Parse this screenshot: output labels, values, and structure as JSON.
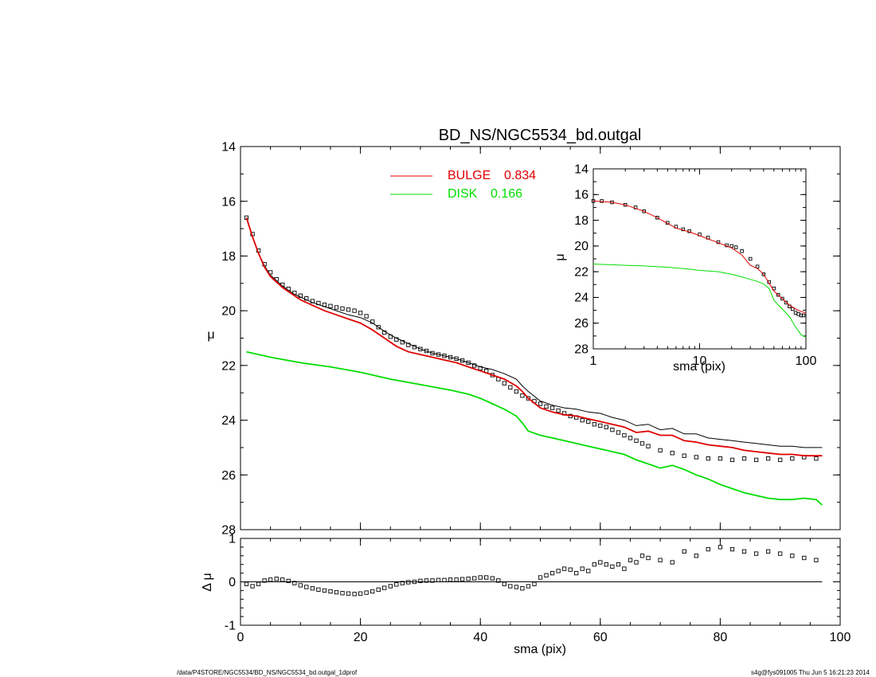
{
  "chart_data": [
    {
      "type": "line",
      "panel": "main",
      "title": "BD_NS/NGC5534_bd.outgal",
      "xlabel": "sma (pix)",
      "ylabel": "μ",
      "xlim": [
        0,
        100
      ],
      "ylim": [
        28,
        14
      ],
      "y_inverted": true,
      "x_ticks": [
        "0",
        "20",
        "40",
        "60",
        "80",
        "100"
      ],
      "y_ticks": [
        "14",
        "16",
        "18",
        "20",
        "22",
        "24",
        "26",
        "28"
      ],
      "legend": [
        {
          "name": "BULGE",
          "value": "0.834",
          "color": "#e00000"
        },
        {
          "name": "DISK",
          "value": "0.166",
          "color": "#00dd00"
        }
      ],
      "series": [
        {
          "name": "data",
          "color": "#000000",
          "style": "squares",
          "x": [
            1,
            2,
            3,
            4,
            5,
            6,
            7,
            8,
            9,
            10,
            11,
            12,
            13,
            14,
            15,
            16,
            17,
            18,
            19,
            20,
            21,
            22,
            23,
            24,
            25,
            26,
            27,
            28,
            29,
            30,
            31,
            32,
            33,
            34,
            35,
            36,
            37,
            38,
            39,
            40,
            41,
            42,
            43,
            44,
            45,
            46,
            47,
            48,
            49,
            50,
            51,
            52,
            53,
            54,
            55,
            56,
            57,
            58,
            59,
            60,
            61,
            62,
            63,
            64,
            65,
            66,
            67,
            68,
            70,
            72,
            74,
            76,
            78,
            80,
            82,
            84,
            86,
            88,
            90,
            92,
            94,
            96
          ],
          "y": [
            16.6,
            17.2,
            17.8,
            18.3,
            18.6,
            18.85,
            19.05,
            19.2,
            19.35,
            19.45,
            19.55,
            19.65,
            19.72,
            19.78,
            19.83,
            19.88,
            19.92,
            19.96,
            20.0,
            20.08,
            20.2,
            20.4,
            20.6,
            20.8,
            20.95,
            21.05,
            21.15,
            21.25,
            21.33,
            21.4,
            21.47,
            21.55,
            21.6,
            21.65,
            21.7,
            21.75,
            21.82,
            21.9,
            22.0,
            22.1,
            22.2,
            22.35,
            22.5,
            22.65,
            22.8,
            22.95,
            23.1,
            23.2,
            23.3,
            23.4,
            23.5,
            23.55,
            23.65,
            23.75,
            23.85,
            23.9,
            24.0,
            24.05,
            24.15,
            24.2,
            24.25,
            24.35,
            24.45,
            24.55,
            24.65,
            24.75,
            24.85,
            24.95,
            25.1,
            25.2,
            25.3,
            25.35,
            25.4,
            25.4,
            25.45,
            25.4,
            25.45,
            25.4,
            25.45,
            25.4,
            25.35,
            25.4
          ]
        },
        {
          "name": "total",
          "color": "#000000",
          "style": "line",
          "x": [
            1,
            2,
            3,
            4,
            5,
            6,
            7,
            8,
            9,
            10,
            12,
            14,
            16,
            18,
            20,
            22,
            24,
            26,
            28,
            30,
            32,
            34,
            36,
            38,
            40,
            42,
            44,
            46,
            47,
            48,
            50,
            52,
            54,
            56,
            58,
            60,
            62,
            64,
            66,
            68,
            70,
            72,
            74,
            76,
            78,
            80,
            82,
            84,
            86,
            88,
            90,
            92,
            94,
            96,
            97
          ],
          "y": [
            16.6,
            17.3,
            17.9,
            18.35,
            18.7,
            18.9,
            19.1,
            19.25,
            19.4,
            19.5,
            19.7,
            19.85,
            20.0,
            20.15,
            20.25,
            20.45,
            20.75,
            21.0,
            21.2,
            21.4,
            21.55,
            21.65,
            21.75,
            21.9,
            22.05,
            22.15,
            22.3,
            22.5,
            22.75,
            22.95,
            23.3,
            23.45,
            23.55,
            23.6,
            23.7,
            23.75,
            23.9,
            24.0,
            24.2,
            24.15,
            24.35,
            24.3,
            24.5,
            24.5,
            24.65,
            24.7,
            24.75,
            24.8,
            24.85,
            24.9,
            24.95,
            24.95,
            25.0,
            25.0,
            25.0
          ]
        },
        {
          "name": "BULGE",
          "color": "#e00000",
          "style": "line",
          "x": [
            1,
            2,
            3,
            4,
            5,
            6,
            7,
            8,
            9,
            10,
            12,
            14,
            16,
            18,
            20,
            22,
            24,
            26,
            28,
            30,
            32,
            34,
            36,
            38,
            40,
            42,
            44,
            46,
            47,
            48,
            50,
            52,
            54,
            56,
            58,
            60,
            62,
            64,
            66,
            68,
            70,
            72,
            74,
            76,
            78,
            80,
            82,
            84,
            86,
            88,
            90,
            92,
            94,
            96,
            97
          ],
          "y": [
            16.6,
            17.3,
            17.9,
            18.4,
            18.75,
            18.95,
            19.15,
            19.3,
            19.45,
            19.6,
            19.8,
            20.0,
            20.15,
            20.3,
            20.45,
            20.7,
            21.0,
            21.3,
            21.5,
            21.6,
            21.7,
            21.8,
            21.9,
            22.05,
            22.2,
            22.35,
            22.5,
            22.75,
            22.95,
            23.2,
            23.55,
            23.7,
            23.8,
            23.85,
            23.95,
            24.05,
            24.15,
            24.25,
            24.45,
            24.4,
            24.55,
            24.55,
            24.75,
            24.8,
            24.9,
            24.95,
            25.0,
            25.1,
            25.15,
            25.2,
            25.25,
            25.25,
            25.3,
            25.3,
            25.3
          ]
        },
        {
          "name": "DISK",
          "color": "#00dd00",
          "style": "line",
          "x": [
            1,
            5,
            10,
            15,
            20,
            25,
            30,
            35,
            38,
            40,
            42,
            44,
            46,
            47,
            48,
            50,
            52,
            54,
            56,
            58,
            60,
            62,
            64,
            66,
            68,
            70,
            72,
            74,
            76,
            78,
            80,
            82,
            84,
            86,
            88,
            90,
            92,
            94,
            96,
            97
          ],
          "y": [
            21.5,
            21.7,
            21.9,
            22.05,
            22.25,
            22.5,
            22.7,
            22.9,
            23.05,
            23.2,
            23.4,
            23.6,
            23.85,
            24.1,
            24.4,
            24.55,
            24.65,
            24.75,
            24.85,
            24.95,
            25.05,
            25.15,
            25.25,
            25.45,
            25.6,
            25.75,
            25.65,
            25.8,
            26.0,
            26.15,
            26.35,
            26.5,
            26.65,
            26.75,
            26.85,
            26.9,
            26.9,
            26.85,
            26.9,
            27.1
          ]
        }
      ]
    },
    {
      "type": "scatter",
      "panel": "residual",
      "xlabel": "sma (pix)",
      "ylabel": "Δ μ",
      "xlim": [
        0,
        100
      ],
      "ylim": [
        -1,
        1
      ],
      "x_ticks": [
        "0",
        "20",
        "40",
        "60",
        "80",
        "100"
      ],
      "y_ticks": [
        "-1",
        "0",
        "1"
      ],
      "series": [
        {
          "name": "residual",
          "color": "#000000",
          "style": "squares",
          "x": [
            1,
            2,
            3,
            4,
            5,
            6,
            7,
            8,
            9,
            10,
            11,
            12,
            13,
            14,
            15,
            16,
            17,
            18,
            19,
            20,
            21,
            22,
            23,
            24,
            25,
            26,
            27,
            28,
            29,
            30,
            31,
            32,
            33,
            34,
            35,
            36,
            37,
            38,
            39,
            40,
            41,
            42,
            43,
            44,
            45,
            46,
            47,
            48,
            49,
            50,
            51,
            52,
            53,
            54,
            55,
            56,
            57,
            58,
            59,
            60,
            61,
            62,
            63,
            64,
            65,
            66,
            67,
            68,
            70,
            72,
            74,
            76,
            78,
            80,
            82,
            84,
            86,
            88,
            90,
            92,
            94,
            96
          ],
          "y": [
            -0.05,
            -0.1,
            -0.05,
            0.03,
            0.05,
            0.07,
            0.05,
            0.02,
            -0.03,
            -0.08,
            -0.12,
            -0.15,
            -0.18,
            -0.2,
            -0.22,
            -0.24,
            -0.26,
            -0.27,
            -0.28,
            -0.27,
            -0.25,
            -0.22,
            -0.18,
            -0.14,
            -0.1,
            -0.06,
            -0.03,
            -0.01,
            0.0,
            0.02,
            0.03,
            0.03,
            0.04,
            0.04,
            0.05,
            0.05,
            0.06,
            0.07,
            0.08,
            0.1,
            0.1,
            0.08,
            0.03,
            -0.05,
            -0.1,
            -0.12,
            -0.15,
            -0.1,
            -0.05,
            0.1,
            0.15,
            0.2,
            0.25,
            0.3,
            0.28,
            0.2,
            0.3,
            0.25,
            0.4,
            0.45,
            0.4,
            0.35,
            0.4,
            0.3,
            0.5,
            0.45,
            0.6,
            0.55,
            0.5,
            0.45,
            0.7,
            0.6,
            0.75,
            0.8,
            0.75,
            0.7,
            0.65,
            0.7,
            0.65,
            0.6,
            0.55,
            0.5
          ]
        },
        {
          "name": "zero-line",
          "color": "#000000",
          "style": "line",
          "x": [
            0,
            97
          ],
          "y": [
            0,
            0
          ]
        }
      ]
    },
    {
      "type": "line",
      "panel": "inset",
      "xlabel": "sma (pix)",
      "ylabel": "μ",
      "xscale": "log",
      "xlim": [
        1,
        100
      ],
      "ylim": [
        28,
        14
      ],
      "y_inverted": true,
      "x_ticks": [
        "1",
        "10",
        "100"
      ],
      "y_ticks": [
        "14",
        "16",
        "18",
        "20",
        "22",
        "24",
        "26",
        "28"
      ],
      "series": [
        {
          "name": "data",
          "color": "#000000",
          "style": "squares",
          "x": [
            1,
            1.2,
            1.5,
            2,
            2.5,
            3,
            4,
            5,
            6,
            7,
            8,
            10,
            12,
            15,
            18,
            20,
            22,
            25,
            30,
            35,
            40,
            45,
            50,
            55,
            60,
            65,
            70,
            75,
            80,
            85,
            90,
            95
          ],
          "y": [
            16.5,
            16.5,
            16.6,
            16.8,
            17.0,
            17.3,
            17.8,
            18.2,
            18.5,
            18.7,
            18.85,
            19.1,
            19.35,
            19.7,
            19.95,
            20.0,
            20.1,
            20.4,
            21.0,
            21.6,
            22.2,
            22.8,
            23.3,
            23.8,
            24.1,
            24.4,
            24.7,
            24.9,
            25.2,
            25.3,
            25.4,
            25.4
          ]
        },
        {
          "name": "BULGE",
          "color": "#e00000",
          "style": "line",
          "x": [
            1,
            1.5,
            2,
            3,
            4,
            5,
            6,
            8,
            10,
            12,
            15,
            18,
            20,
            25,
            30,
            35,
            40,
            50,
            60,
            70,
            80,
            90,
            100
          ],
          "y": [
            16.5,
            16.6,
            16.8,
            17.3,
            17.8,
            18.25,
            18.6,
            18.9,
            19.2,
            19.45,
            19.75,
            20.0,
            20.15,
            20.7,
            21.5,
            21.75,
            22.2,
            23.5,
            24.1,
            24.6,
            24.9,
            25.1,
            25.2
          ]
        },
        {
          "name": "DISK",
          "color": "#00dd00",
          "style": "line",
          "x": [
            1,
            2,
            3,
            5,
            8,
            10,
            15,
            20,
            25,
            30,
            35,
            40,
            45,
            50,
            55,
            60,
            70,
            80,
            90,
            100
          ],
          "y": [
            21.4,
            21.5,
            21.55,
            21.65,
            21.8,
            21.9,
            22.0,
            22.2,
            22.4,
            22.6,
            22.75,
            22.95,
            23.3,
            24.2,
            24.6,
            24.9,
            25.5,
            26.3,
            26.9,
            27.1
          ]
        }
      ]
    }
  ],
  "footer": {
    "left": "/data/P4STORE/NGC5534/BD_NS/NGC5534_bd.outgal_1dprof",
    "right": "s4g@fys091005  Thu Jun  5 16:21:23 2014"
  }
}
